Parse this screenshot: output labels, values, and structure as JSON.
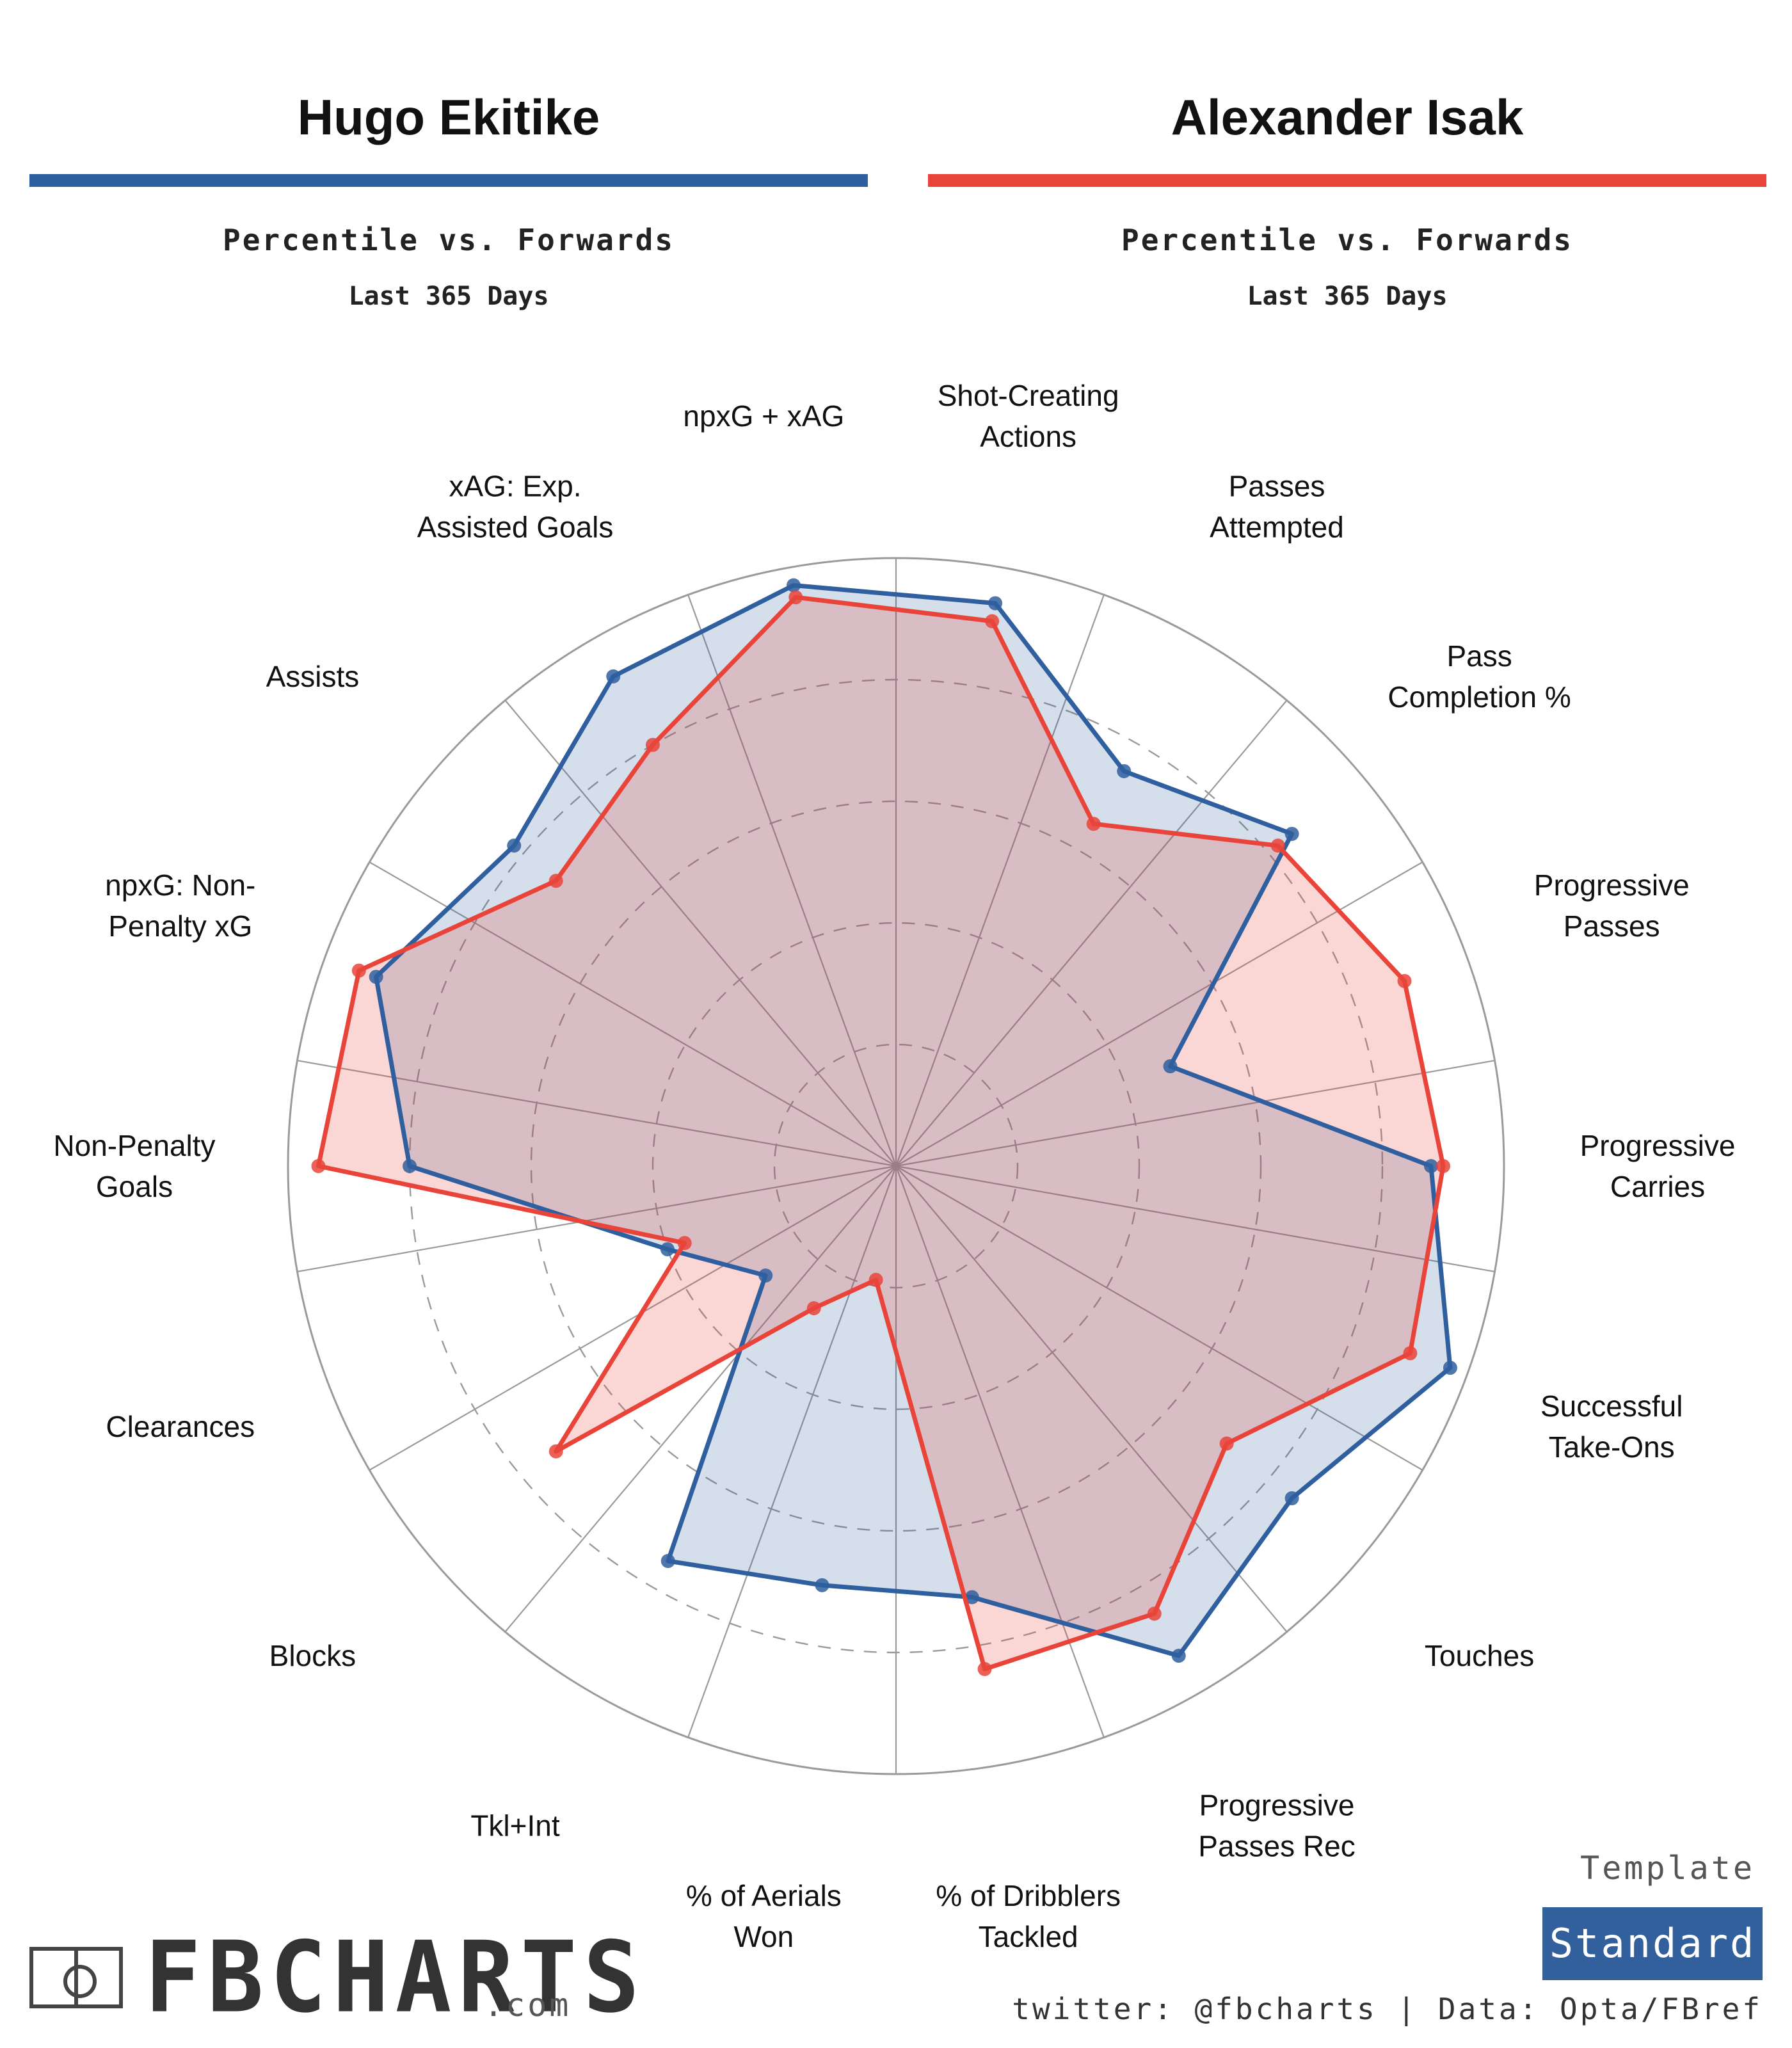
{
  "players": [
    {
      "name": "Hugo Ekitike",
      "subtitle": "Percentile vs. Forwards",
      "period": "Last 365 Days",
      "color": "#2f5f9e"
    },
    {
      "name": "Alexander Isak",
      "subtitle": "Percentile vs. Forwards",
      "period": "Last 365 Days",
      "color": "#e8443a"
    }
  ],
  "chart_data": {
    "type": "radar",
    "title": "Percentile vs. Forwards",
    "range": [
      0,
      100
    ],
    "grid": true,
    "categories": [
      "Shot-Creating Actions",
      "Passes Attempted",
      "Pass Completion %",
      "Progressive Passes",
      "Progressive Carries",
      "Successful Take-Ons",
      "Touches",
      "Progressive Passes Rec",
      "% of Dribblers Tackled",
      "% of Aerials Won",
      "Tkl+Int",
      "Blocks",
      "Clearances",
      "Non-Penalty Goals",
      "npxG: Non-Penalty xG",
      "Assists",
      "xAG: Exp. Assisted Goals",
      "npxG + xAG"
    ],
    "axis_labels": [
      [
        "Shot-Creating",
        "Actions"
      ],
      [
        "Passes",
        "Attempted"
      ],
      [
        "Pass",
        "Completion %"
      ],
      [
        "Progressive",
        "Passes"
      ],
      [
        "Progressive",
        "Carries"
      ],
      [
        "Successful",
        "Take-Ons"
      ],
      [
        "Touches"
      ],
      [
        "Progressive",
        "Passes Rec"
      ],
      [
        "% of Dribblers",
        "Tackled"
      ],
      [
        "% of Aerials",
        "Won"
      ],
      [
        "Tkl+Int"
      ],
      [
        "Blocks"
      ],
      [
        "Clearances"
      ],
      [
        "Non-Penalty",
        "Goals"
      ],
      [
        "npxG: Non-",
        "Penalty xG"
      ],
      [
        "Assists"
      ],
      [
        "xAG: Exp.",
        "Assisted Goals"
      ],
      [
        "npxG + xAG"
      ]
    ],
    "series": [
      {
        "name": "Hugo Ekitike",
        "color": "#2f5f9e",
        "fill": "rgba(47,95,158,0.2)",
        "values": [
          94,
          75,
          85,
          48,
          88,
          97,
          85,
          93,
          72,
          70,
          75,
          28,
          40,
          80,
          91,
          82,
          93,
          97
        ]
      },
      {
        "name": "Alexander Isak",
        "color": "#e8443a",
        "fill": "rgba(232,68,58,0.22)",
        "values": [
          91,
          65,
          82,
          89,
          90,
          90,
          71,
          85,
          84,
          19,
          27,
          73,
          37,
          95,
          94,
          73,
          80,
          95
        ]
      }
    ]
  },
  "template": {
    "label": "Template",
    "value": "Standard"
  },
  "brand": {
    "name": "FBCHARTS",
    "suffix": ".com"
  },
  "credits": "twitter: @fbcharts | Data: Opta/FBref"
}
